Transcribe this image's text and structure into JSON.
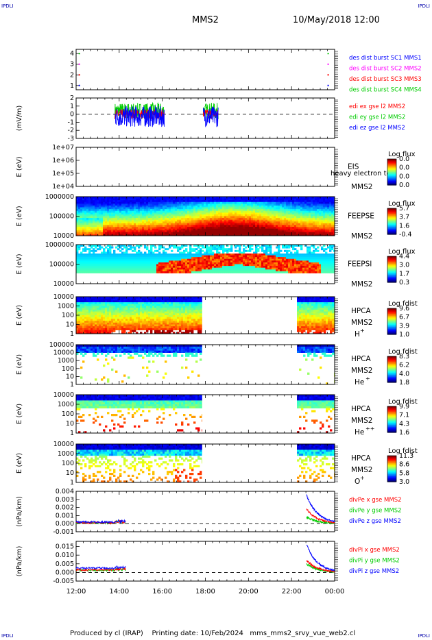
{
  "corner_label": "IPDLI",
  "header": {
    "spacecraft": "MMS2",
    "datetime": "10/May/2018 12:00"
  },
  "footer": {
    "text": "Produced by cl (IRAP)    Printing date: 10/Feb/2024   mms_mms2_srvy_vue_web2.cl"
  },
  "x_axis": {
    "ticks": [
      "12:00",
      "14:00",
      "16:00",
      "18:00",
      "20:00",
      "22:00",
      "00:00"
    ],
    "tick_hours": [
      12,
      14,
      16,
      18,
      20,
      22,
      24
    ]
  },
  "chart_data": [
    {
      "id": "burst",
      "type": "scatter",
      "ylabel": "",
      "ylim": [
        0.6,
        4.4
      ],
      "yticks": [
        "4",
        "3",
        "2",
        "1"
      ],
      "ytick_values": [
        4,
        3,
        2,
        1
      ],
      "legend": [
        {
          "text": "des dist burst SC1 MMS1",
          "color": "#0000ff"
        },
        {
          "text": "des dist burst SC2 MMS2",
          "color": "#ff00ff"
        },
        {
          "text": "des dist burst SC3 MMS3",
          "color": "#ff0000"
        },
        {
          "text": "des dist burst SC4 MMS4",
          "color": "#00cc00"
        }
      ],
      "series": [
        {
          "color": "#00cc00",
          "points": [
            [
              12.15,
              4
            ],
            [
              23.7,
              4
            ]
          ]
        },
        {
          "color": "#ff00ff",
          "points": [
            [
              12.15,
              3
            ],
            [
              23.7,
              3
            ]
          ]
        },
        {
          "color": "#ff0000",
          "points": [
            [
              12.15,
              2
            ],
            [
              23.7,
              2
            ]
          ]
        },
        {
          "color": "#0000ff",
          "points": [
            [
              12.15,
              1
            ],
            [
              23.7,
              1
            ]
          ]
        }
      ]
    },
    {
      "id": "edi",
      "type": "line",
      "ylabel": "(mV/m)",
      "ylim": [
        -3,
        2
      ],
      "yticks": [
        "2",
        "1",
        "0",
        "-1",
        "-2",
        "-3"
      ],
      "ytick_values": [
        2,
        1,
        0,
        -1,
        -2,
        -3
      ],
      "legend": [
        {
          "text": "edi ex gse l2 MMS2",
          "color": "#ff0000"
        },
        {
          "text": "edi ey gse l2 MMS2",
          "color": "#00cc00"
        },
        {
          "text": "edi ez gse l2 MMS2",
          "color": "#0000ff"
        }
      ],
      "intervals": [
        [
          13.8,
          16.1
        ],
        [
          17.9,
          18.6
        ]
      ],
      "amplitude": {
        "ex": 0.6,
        "ey": 1.0,
        "ez": 1.3
      }
    },
    {
      "id": "eis",
      "type": "heatmap",
      "ylabel": "E (eV)",
      "yticks": [
        "1e+07",
        "1e+06",
        "1e+05",
        "1e+04"
      ],
      "instrument_lines": [
        "EIS",
        "MMS2"
      ],
      "note": "heavy electron to",
      "colorbar": {
        "title": "Log flux",
        "values": [
          "0.0",
          "0.0",
          "0.0",
          "0.0"
        ]
      },
      "coverage": []
    },
    {
      "id": "feepse",
      "type": "heatmap",
      "ylabel": "E (eV)",
      "yticks": [
        "1000000",
        "100000",
        "10000"
      ],
      "instrument_lines": [
        "FEEPSE",
        "MMS2"
      ],
      "colorbar": {
        "title": "Log flux",
        "values": [
          "5.7",
          "3.7",
          "1.6",
          "-0.4"
        ]
      },
      "coverage": [
        [
          12.0,
          24.0
        ]
      ]
    },
    {
      "id": "feepsi",
      "type": "heatmap",
      "ylabel": "E (eV)",
      "yticks": [
        "1000000",
        "100000",
        "10000"
      ],
      "instrument_lines": [
        "FEEPSI",
        "MMS2"
      ],
      "colorbar": {
        "title": "Log flux",
        "values": [
          "4.4",
          "3.0",
          "1.7",
          "0.3"
        ]
      },
      "coverage": [
        [
          12.0,
          24.0
        ]
      ]
    },
    {
      "id": "hpca_h",
      "type": "heatmap",
      "ylabel": "E (eV)",
      "yticks": [
        "10000",
        "1000",
        "100",
        "10",
        "1"
      ],
      "instrument_lines": [
        "HPCA",
        "MMS2"
      ],
      "species": "H",
      "species_charge": "+",
      "colorbar": {
        "title": "Log fdist",
        "values": [
          "9.6",
          "6.7",
          "3.9",
          "1.0"
        ]
      },
      "coverage": [
        [
          12.0,
          17.85
        ],
        [
          22.25,
          24.0
        ]
      ]
    },
    {
      "id": "hpca_he",
      "type": "heatmap",
      "ylabel": "E (eV)",
      "yticks": [
        "100000",
        "10000",
        "1000",
        "100",
        "10",
        "1"
      ],
      "instrument_lines": [
        "HPCA",
        "MMS2"
      ],
      "species": "He",
      "species_charge": "+",
      "colorbar": {
        "title": "Log fdist",
        "values": [
          "8.3",
          "6.2",
          "4.0",
          "1.8"
        ]
      },
      "coverage": [
        [
          12.0,
          17.85
        ],
        [
          22.25,
          24.0
        ]
      ]
    },
    {
      "id": "hpca_hepp",
      "type": "heatmap",
      "ylabel": "E (eV)",
      "yticks": [
        "10000",
        "1000",
        "100",
        "10",
        "1"
      ],
      "instrument_lines": [
        "HPCA",
        "MMS2"
      ],
      "species": "He",
      "species_charge": "++",
      "colorbar": {
        "title": "Log fdist",
        "values": [
          "9.9",
          "7.1",
          "4.3",
          "1.6"
        ]
      },
      "coverage": [
        [
          12.0,
          17.85
        ],
        [
          22.25,
          24.0
        ]
      ]
    },
    {
      "id": "hpca_o",
      "type": "heatmap",
      "ylabel": "E (eV)",
      "yticks": [
        "10000",
        "1000",
        "100",
        "10",
        "1"
      ],
      "instrument_lines": [
        "HPCA",
        "MMS2"
      ],
      "species": "O",
      "species_charge": "+",
      "colorbar": {
        "title": "Log fdist",
        "values": [
          "11.3",
          "8.6",
          "5.8",
          "3.0"
        ]
      },
      "coverage": [
        [
          12.0,
          17.85
        ],
        [
          22.25,
          24.0
        ]
      ]
    },
    {
      "id": "divpe",
      "type": "line",
      "ylabel": "(nPa/km)",
      "ylim": [
        -0.001,
        0.004
      ],
      "yticks": [
        "0.004",
        "0.003",
        "0.002",
        "0.001",
        "0.000",
        "-0.001"
      ],
      "ytick_values": [
        0.004,
        0.003,
        0.002,
        0.001,
        0.0,
        -0.001
      ],
      "legend": [
        {
          "text": "divPe x gse MMS2",
          "color": "#ff0000"
        },
        {
          "text": "divPe y gse MMS2",
          "color": "#00cc00"
        },
        {
          "text": "divPe z gse MMS2",
          "color": "#0000ff"
        }
      ],
      "intervals": [
        [
          12.0,
          14.3
        ],
        [
          22.7,
          24.0
        ]
      ],
      "late_peak": {
        "z": 0.0035,
        "x": 0.0018,
        "y": 0.0008
      },
      "early_level": 0.0002
    },
    {
      "id": "divpi",
      "type": "line",
      "ylabel": "(nPa/km)",
      "ylim": [
        -0.005,
        0.018
      ],
      "yticks": [
        "0.015",
        "0.010",
        "0.005",
        "0.000",
        "-0.005"
      ],
      "ytick_values": [
        0.015,
        0.01,
        0.005,
        0.0,
        -0.005
      ],
      "legend": [
        {
          "text": "divPi x gse MMS2",
          "color": "#ff0000"
        },
        {
          "text": "divPi y gse MMS2",
          "color": "#00cc00"
        },
        {
          "text": "divPi z gse MMS2",
          "color": "#0000ff"
        }
      ],
      "intervals": [
        [
          12.0,
          14.3
        ],
        [
          22.7,
          24.0
        ]
      ],
      "late_peak": {
        "z": 0.016,
        "x": 0.007,
        "y": 0.005
      },
      "early_level": 0.0025
    }
  ]
}
